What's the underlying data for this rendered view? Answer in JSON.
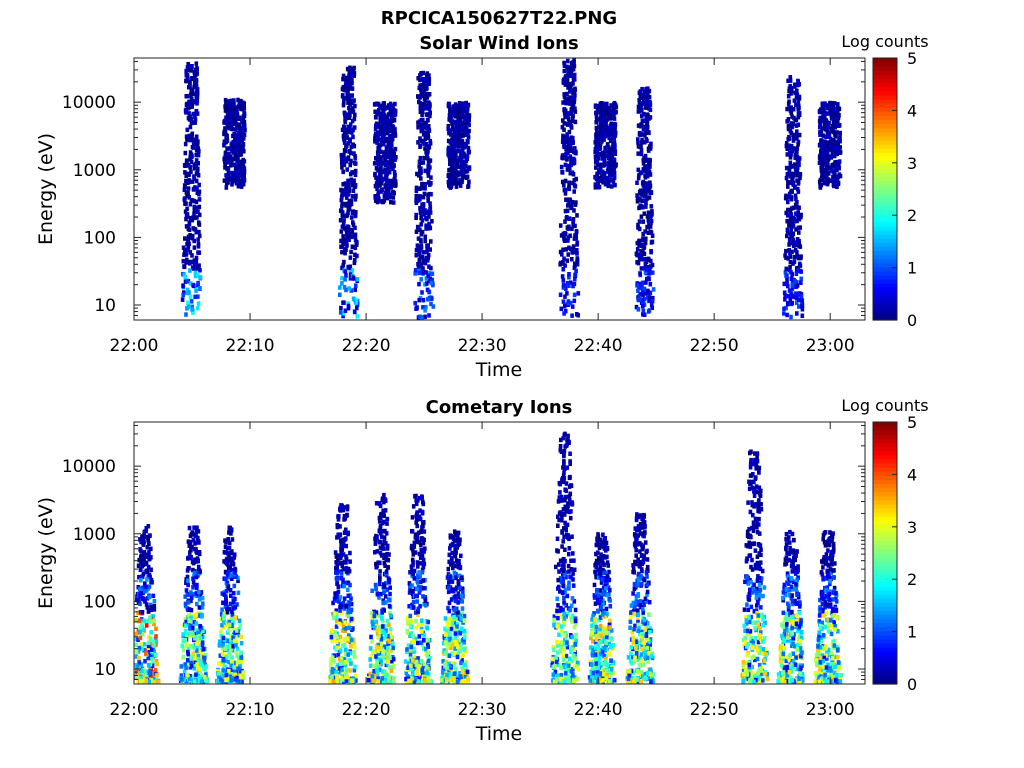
{
  "figure": {
    "file_title": "RPCICA150627T22.PNG"
  },
  "chart_data": [
    {
      "type": "heatmap",
      "title": "Solar Wind Ions",
      "xlabel": "Time",
      "ylabel": "Energy (eV)",
      "x_range": [
        "22:00",
        "23:03"
      ],
      "y_scale": "log",
      "ylim": [
        6,
        45000
      ],
      "x_ticks": [
        "22:00",
        "22:10",
        "22:20",
        "22:30",
        "22:40",
        "22:50",
        "23:00"
      ],
      "y_ticks": [
        10,
        100,
        1000,
        10000
      ],
      "y_tick_labels": [
        "10",
        "100",
        "1000",
        "10000"
      ],
      "colorbar": {
        "label": "Log counts",
        "min": 0,
        "max": 5,
        "ticks": [
          "0",
          "1",
          "2",
          "3",
          "4",
          "5"
        ],
        "colormap": "jet"
      },
      "grid": false,
      "bursts": [
        {
          "time": "22:04:50",
          "emin": 6,
          "emax": 35000,
          "peak_low_energy_log_counts": 1.8
        },
        {
          "time": "22:08:30",
          "emin": 500,
          "emax": 10000,
          "peak_low_energy_log_counts": 0.3
        },
        {
          "time": "22:18:20",
          "emin": 6,
          "emax": 30000,
          "peak_low_energy_log_counts": 1.7
        },
        {
          "time": "22:21:30",
          "emin": 300,
          "emax": 9000,
          "peak_low_energy_log_counts": 0.3
        },
        {
          "time": "22:24:50",
          "emin": 6,
          "emax": 25000,
          "peak_low_energy_log_counts": 1.2
        },
        {
          "time": "22:27:50",
          "emin": 500,
          "emax": 9000,
          "peak_low_energy_log_counts": 0.3
        },
        {
          "time": "22:37:20",
          "emin": 6,
          "emax": 40000,
          "peak_low_energy_log_counts": 0.8
        },
        {
          "time": "22:40:30",
          "emin": 500,
          "emax": 9000,
          "peak_low_energy_log_counts": 0.3
        },
        {
          "time": "22:43:50",
          "emin": 6,
          "emax": 15000,
          "peak_low_energy_log_counts": 0.9
        },
        {
          "time": "22:56:40",
          "emin": 6,
          "emax": 22000,
          "peak_low_energy_log_counts": 0.9
        },
        {
          "time": "22:59:50",
          "emin": 500,
          "emax": 9000,
          "peak_low_energy_log_counts": 0.3
        }
      ]
    },
    {
      "type": "heatmap",
      "title": "Cometary Ions",
      "xlabel": "Time",
      "ylabel": "Energy (eV)",
      "x_range": [
        "22:00",
        "23:03"
      ],
      "y_scale": "log",
      "ylim": [
        6,
        45000
      ],
      "x_ticks": [
        "22:00",
        "22:10",
        "22:20",
        "22:30",
        "22:40",
        "22:50",
        "23:00"
      ],
      "y_ticks": [
        10,
        100,
        1000,
        10000
      ],
      "y_tick_labels": [
        "10",
        "100",
        "1000",
        "10000"
      ],
      "colorbar": {
        "label": "Log counts",
        "min": 0,
        "max": 5,
        "ticks": [
          "0",
          "1",
          "2",
          "3",
          "4",
          "5"
        ],
        "colormap": "jet"
      },
      "grid": false,
      "bursts": [
        {
          "time": "22:00:50",
          "emin": 6,
          "emax": 1200,
          "peak_log_counts": 3.8
        },
        {
          "time": "22:05:00",
          "emin": 6,
          "emax": 1200,
          "peak_log_counts": 2.8
        },
        {
          "time": "22:08:10",
          "emin": 6,
          "emax": 1200,
          "peak_log_counts": 2.8
        },
        {
          "time": "22:17:50",
          "emin": 6,
          "emax": 2500,
          "peak_log_counts": 3.0
        },
        {
          "time": "22:21:10",
          "emin": 6,
          "emax": 3500,
          "peak_log_counts": 3.0
        },
        {
          "time": "22:24:20",
          "emin": 6,
          "emax": 3500,
          "peak_log_counts": 2.8
        },
        {
          "time": "22:27:30",
          "emin": 6,
          "emax": 1000,
          "peak_log_counts": 3.0
        },
        {
          "time": "22:37:00",
          "emin": 6,
          "emax": 28000,
          "peak_log_counts": 2.6
        },
        {
          "time": "22:40:10",
          "emin": 6,
          "emax": 1000,
          "peak_log_counts": 3.0
        },
        {
          "time": "22:43:30",
          "emin": 6,
          "emax": 1800,
          "peak_log_counts": 2.8
        },
        {
          "time": "22:53:20",
          "emin": 6,
          "emax": 16000,
          "peak_log_counts": 3.0
        },
        {
          "time": "22:56:30",
          "emin": 6,
          "emax": 1000,
          "peak_log_counts": 2.8
        },
        {
          "time": "22:59:40",
          "emin": 6,
          "emax": 1000,
          "peak_log_counts": 2.8
        }
      ]
    }
  ]
}
